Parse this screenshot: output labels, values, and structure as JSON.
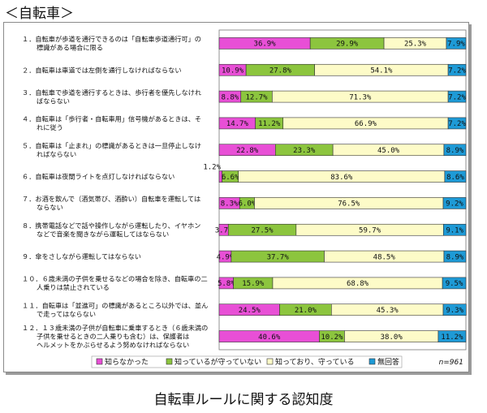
{
  "page": {
    "title": "＜自転車＞",
    "caption": "自転車ルールに関する認知度"
  },
  "chart_data": {
    "type": "bar",
    "stacked": true,
    "orientation": "horizontal",
    "xlim": [
      0,
      100
    ],
    "note": "n=961",
    "legend_position": "bottom",
    "categories": [
      [
        "１．自転車が歩道を通行できるのは「自転車歩道通行可」の",
        "標識がある場合に限る"
      ],
      [
        "２．自転車は車道では左側を通行しなければならない"
      ],
      [
        "３．自転車で歩道を通行するときは、歩行者を優先しなけれ",
        "ばならない"
      ],
      [
        "４．自転車は「歩行者・自転車用」信号機があるときは、そ",
        "れに従う"
      ],
      [
        "５．自転車は「止まれ」の標識があるときは一旦停止しなけ",
        "ればならない"
      ],
      [
        "６．自転車は夜間ライトを点灯しなければならない"
      ],
      [
        "７．お酒を飲んで（酒気帯び、酒酔い）自転車を運転しては",
        "ならない"
      ],
      [
        "８．携帯電話などで話や操作しながら運転したり、イヤホン",
        "などで音楽を聞きながら運転してはならない"
      ],
      [
        "９．傘をさしながら運転してはならない"
      ],
      [
        "１０．６歳未満の子供を乗せるなどの場合を除き、自転車の二",
        "人乗りは禁止されている"
      ],
      [
        "１１．自転車は「並進可」の標識があるところ以外では、並ん",
        "で走ってはならない"
      ],
      [
        "１２．１３歳未満の子供が自転車に乗車するとき（６歳未満の",
        "子供を乗せるときの二人乗りも含む）は、保護者は",
        "ヘルメットをかぶらせるよう努めなければならない"
      ]
    ],
    "series": [
      {
        "name": "知らなかった",
        "color": "#e84fd6",
        "values": [
          36.9,
          10.9,
          8.8,
          14.7,
          22.8,
          1.2,
          8.3,
          3.7,
          4.9,
          5.8,
          24.5,
          40.6
        ]
      },
      {
        "name": "知っているが守っていない",
        "color": "#8cc53e",
        "values": [
          29.9,
          27.8,
          12.7,
          11.2,
          23.3,
          6.6,
          6.0,
          27.5,
          37.7,
          15.9,
          21.0,
          10.2
        ]
      },
      {
        "name": "知っており、守っている",
        "color": "#fdfbc8",
        "values": [
          25.3,
          54.1,
          71.3,
          66.9,
          45.0,
          83.6,
          76.5,
          59.7,
          48.5,
          68.8,
          45.3,
          38.0
        ]
      },
      {
        "name": "無回答",
        "color": "#1e9ad6",
        "values": [
          7.9,
          7.2,
          7.2,
          7.2,
          8.9,
          8.6,
          9.2,
          9.1,
          8.9,
          9.5,
          9.3,
          11.2
        ]
      }
    ],
    "value_labels": [
      [
        "36.9%",
        "29.9%",
        "25.3%",
        "7.9%"
      ],
      [
        "10.9%",
        "27.8%",
        "54.1%",
        "7.2%"
      ],
      [
        "8.8%",
        "12.7%",
        "71.3%",
        "7.2%"
      ],
      [
        "14.7%",
        "11.2%",
        "66.9%",
        "7.2%"
      ],
      [
        "22.8%",
        "23.3%",
        "45.0%",
        "8.9%"
      ],
      [
        "1.2%",
        "6.6%",
        "83.6%",
        "8.6%"
      ],
      [
        "8.3%",
        "6.0%",
        "76.5%",
        "9.2%"
      ],
      [
        "3.7%",
        "27.5%",
        "59.7%",
        "9.1%"
      ],
      [
        "4.9%",
        "37.7%",
        "48.5%",
        "8.9%"
      ],
      [
        "5.8%",
        "15.9%",
        "68.8%",
        "9.5%"
      ],
      [
        "24.5%",
        "21.0%",
        "45.3%",
        "9.3%"
      ],
      [
        "40.6%",
        "10.2%",
        "38.0%",
        "11.2%"
      ]
    ]
  }
}
